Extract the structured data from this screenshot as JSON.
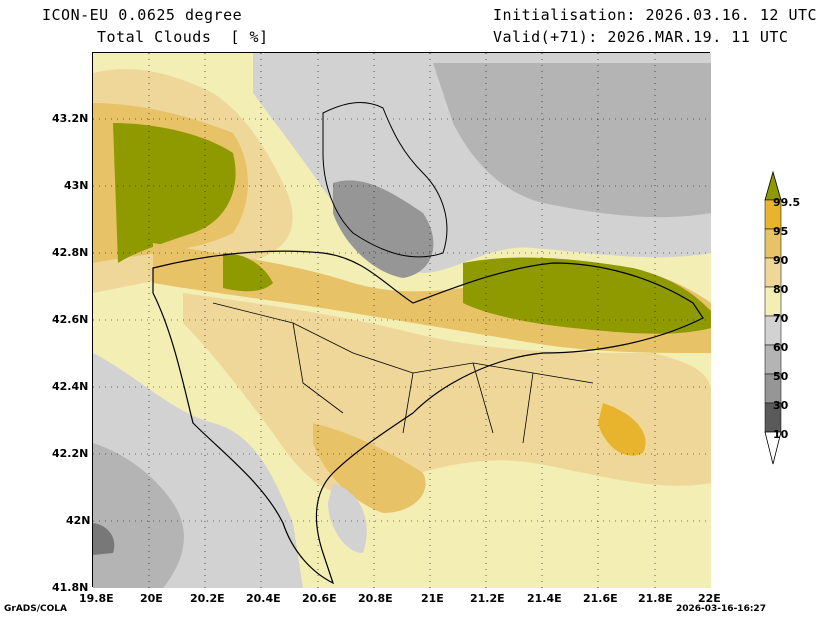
{
  "header": {
    "model": "ICON-EU 0.0625 degree",
    "field": "Total Clouds  [ %]",
    "initialisation": "Initialisation: 2026.03.16. 12 UTC",
    "valid": "Valid(+71): 2026.MAR.19. 11 UTC"
  },
  "axes": {
    "lat_labels": [
      "43.2N",
      "43N",
      "42.8N",
      "42.6N",
      "42.4N",
      "42.2N",
      "42N",
      "41.8N"
    ],
    "lon_labels": [
      "19.8E",
      "20E",
      "20.2E",
      "20.4E",
      "20.6E",
      "20.8E",
      "21E",
      "21.2E",
      "21.4E",
      "21.6E",
      "21.8E",
      "22E"
    ],
    "lat_range": [
      41.8,
      43.4
    ],
    "lon_range": [
      19.8,
      22.0
    ]
  },
  "colorbar": {
    "labels": [
      "99.5",
      "95",
      "90",
      "80",
      "70",
      "60",
      "50",
      "30",
      "10"
    ],
    "colors": [
      "#8f9a00",
      "#e8b42e",
      "#e8c266",
      "#efd79a",
      "#f2eeb4",
      "#d2d2d2",
      "#b4b4b4",
      "#969696",
      "#787878",
      "#5a5a5a",
      "#ffffff"
    ]
  },
  "footer": {
    "left": "GrADS/COLA",
    "right": "2026-03-16-16:27"
  }
}
